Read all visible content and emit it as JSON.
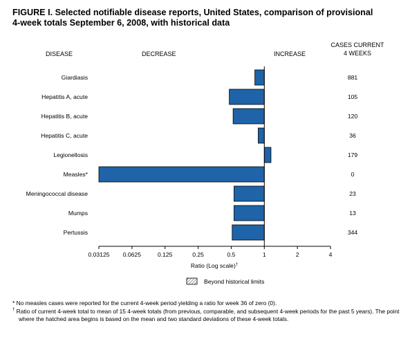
{
  "title_line1": "FIGURE I. Selected notifiable disease reports, United States, comparison of provisional",
  "title_line2": "4-week totals September 6, 2008, with historical data",
  "headers": {
    "disease": "DISEASE",
    "decrease": "DECREASE",
    "increase": "INCREASE",
    "cases_line1": "CASES CURRENT",
    "cases_line2": "4 WEEKS"
  },
  "legend": {
    "label": "Beyond historical limits"
  },
  "footnotes": {
    "measles_mark": "*",
    "measles_text": "No measles cases were reported for the current 4-week period yielding a ratio for week 36 of zero (0).",
    "ratio_mark": "†",
    "ratio_text": "Ratio of current 4-week total to mean of 15 4-week totals (from previous, comparable, and subsequent 4-week periods for the past 5 years). The point where the hatched area begins is based on the mean and two standard deviations of these 4-week totals."
  },
  "colors": {
    "bar": "#1f63a8",
    "bar_stroke": "#000000"
  },
  "chart_data": {
    "type": "bar",
    "orientation": "horizontal",
    "xscale": "log2",
    "xlabel": "Ratio (Log scale)",
    "xlabel_mark": "†",
    "baseline": 1,
    "xlim": [
      0.03125,
      4
    ],
    "xticks": [
      "0.03125",
      "0.0625",
      "0.125",
      "0.25",
      "0.5",
      "1",
      "2",
      "4"
    ],
    "categories": [
      "Giardiasis",
      "Hepatitis A, acute",
      "Hepatitis B, acute",
      "Hepatitis C, acute",
      "Legionellosis",
      "Measles*",
      "Meningococcal disease",
      "Mumps",
      "Pertussis"
    ],
    "values": [
      0.82,
      0.48,
      0.52,
      0.88,
      1.15,
      0.03125,
      0.53,
      0.53,
      0.51
    ],
    "cases": [
      "881",
      "105",
      "120",
      "36",
      "179",
      "0",
      "23",
      "13",
      "344"
    ]
  }
}
